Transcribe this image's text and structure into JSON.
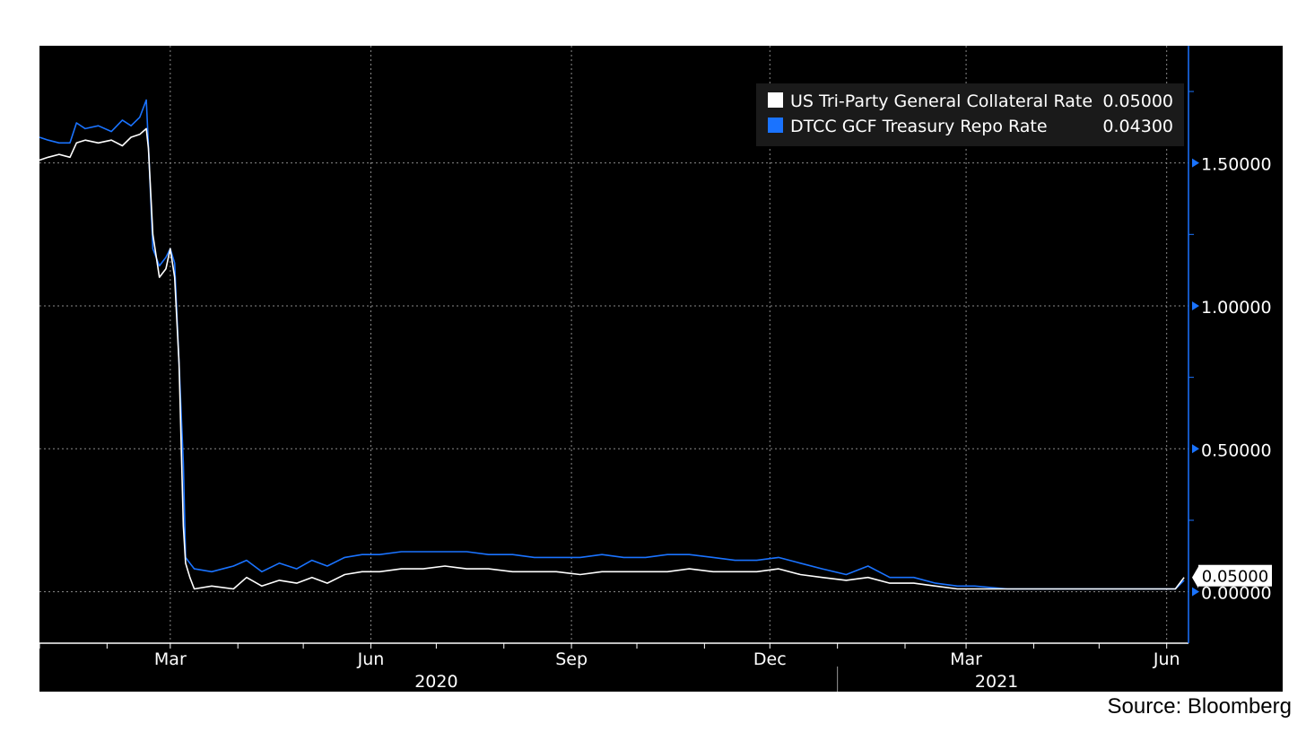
{
  "source": "Source: Bloomberg",
  "chart_data": {
    "type": "line",
    "x_start": "2020-01-01",
    "x_end": "2021-06-11",
    "ylim": [
      -0.18,
      1.91
    ],
    "y_ticks": [
      0.0,
      0.5,
      1.0,
      1.5
    ],
    "y_tick_labels": [
      "0.00000",
      "0.50000",
      "1.00000",
      "1.50000"
    ],
    "x_ticks": [
      {
        "label": "Mar",
        "date": "2020-03-01"
      },
      {
        "label": "Jun",
        "date": "2020-06-01"
      },
      {
        "label": "Sep",
        "date": "2020-09-01"
      },
      {
        "label": "Dec",
        "date": "2020-12-01"
      },
      {
        "label": "Mar",
        "date": "2021-03-01"
      },
      {
        "label": "Jun",
        "date": "2021-06-01"
      }
    ],
    "years": [
      {
        "label": "2020",
        "date": "2020-07-01"
      },
      {
        "label": "2021",
        "date": "2021-03-15"
      }
    ],
    "year_divider": "2021-01-01",
    "grid": true,
    "legend_position": "top-right",
    "last_value_label": "0.05000",
    "series": [
      {
        "name": "US Tri-Party General Collateral Rate",
        "last_value": "0.05000",
        "color": "#ffffff",
        "points": [
          [
            "2020-01-01",
            1.51
          ],
          [
            "2020-01-05",
            1.52
          ],
          [
            "2020-01-10",
            1.53
          ],
          [
            "2020-01-15",
            1.52
          ],
          [
            "2020-01-18",
            1.57
          ],
          [
            "2020-01-22",
            1.58
          ],
          [
            "2020-01-28",
            1.57
          ],
          [
            "2020-02-03",
            1.58
          ],
          [
            "2020-02-08",
            1.56
          ],
          [
            "2020-02-12",
            1.59
          ],
          [
            "2020-02-16",
            1.6
          ],
          [
            "2020-02-19",
            1.62
          ],
          [
            "2020-02-20",
            1.55
          ],
          [
            "2020-02-22",
            1.25
          ],
          [
            "2020-02-25",
            1.1
          ],
          [
            "2020-02-28",
            1.13
          ],
          [
            "2020-03-01",
            1.2
          ],
          [
            "2020-03-03",
            1.1
          ],
          [
            "2020-03-05",
            0.8
          ],
          [
            "2020-03-07",
            0.23
          ],
          [
            "2020-03-08",
            0.1
          ],
          [
            "2020-03-10",
            0.05
          ],
          [
            "2020-03-12",
            0.01
          ],
          [
            "2020-03-20",
            0.02
          ],
          [
            "2020-03-30",
            0.01
          ],
          [
            "2020-04-05",
            0.05
          ],
          [
            "2020-04-12",
            0.02
          ],
          [
            "2020-04-20",
            0.04
          ],
          [
            "2020-04-28",
            0.03
          ],
          [
            "2020-05-05",
            0.05
          ],
          [
            "2020-05-12",
            0.03
          ],
          [
            "2020-05-20",
            0.06
          ],
          [
            "2020-05-28",
            0.07
          ],
          [
            "2020-06-05",
            0.07
          ],
          [
            "2020-06-15",
            0.08
          ],
          [
            "2020-06-25",
            0.08
          ],
          [
            "2020-07-05",
            0.09
          ],
          [
            "2020-07-15",
            0.08
          ],
          [
            "2020-07-25",
            0.08
          ],
          [
            "2020-08-05",
            0.07
          ],
          [
            "2020-08-15",
            0.07
          ],
          [
            "2020-08-25",
            0.07
          ],
          [
            "2020-09-05",
            0.06
          ],
          [
            "2020-09-15",
            0.07
          ],
          [
            "2020-09-25",
            0.07
          ],
          [
            "2020-10-05",
            0.07
          ],
          [
            "2020-10-15",
            0.07
          ],
          [
            "2020-10-25",
            0.08
          ],
          [
            "2020-11-05",
            0.07
          ],
          [
            "2020-11-15",
            0.07
          ],
          [
            "2020-11-25",
            0.07
          ],
          [
            "2020-12-05",
            0.08
          ],
          [
            "2020-12-15",
            0.06
          ],
          [
            "2020-12-25",
            0.05
          ],
          [
            "2021-01-05",
            0.04
          ],
          [
            "2021-01-15",
            0.05
          ],
          [
            "2021-01-25",
            0.03
          ],
          [
            "2021-02-05",
            0.03
          ],
          [
            "2021-02-15",
            0.02
          ],
          [
            "2021-02-25",
            0.01
          ],
          [
            "2021-03-05",
            0.01
          ],
          [
            "2021-03-20",
            0.01
          ],
          [
            "2021-04-05",
            0.01
          ],
          [
            "2021-04-20",
            0.01
          ],
          [
            "2021-05-05",
            0.01
          ],
          [
            "2021-05-20",
            0.01
          ],
          [
            "2021-06-05",
            0.01
          ],
          [
            "2021-06-09",
            0.05
          ]
        ]
      },
      {
        "name": "DTCC GCF Treasury Repo Rate",
        "last_value": "0.04300",
        "color": "#1a73ff",
        "points": [
          [
            "2020-01-01",
            1.59
          ],
          [
            "2020-01-05",
            1.58
          ],
          [
            "2020-01-10",
            1.57
          ],
          [
            "2020-01-15",
            1.57
          ],
          [
            "2020-01-18",
            1.64
          ],
          [
            "2020-01-22",
            1.62
          ],
          [
            "2020-01-28",
            1.63
          ],
          [
            "2020-02-03",
            1.61
          ],
          [
            "2020-02-08",
            1.65
          ],
          [
            "2020-02-12",
            1.63
          ],
          [
            "2020-02-16",
            1.66
          ],
          [
            "2020-02-19",
            1.72
          ],
          [
            "2020-02-20",
            1.56
          ],
          [
            "2020-02-22",
            1.2
          ],
          [
            "2020-02-25",
            1.14
          ],
          [
            "2020-02-28",
            1.17
          ],
          [
            "2020-03-01",
            1.2
          ],
          [
            "2020-03-03",
            1.15
          ],
          [
            "2020-03-05",
            0.8
          ],
          [
            "2020-03-07",
            0.45
          ],
          [
            "2020-03-08",
            0.12
          ],
          [
            "2020-03-10",
            0.1
          ],
          [
            "2020-03-12",
            0.08
          ],
          [
            "2020-03-20",
            0.07
          ],
          [
            "2020-03-30",
            0.09
          ],
          [
            "2020-04-05",
            0.11
          ],
          [
            "2020-04-12",
            0.07
          ],
          [
            "2020-04-20",
            0.1
          ],
          [
            "2020-04-28",
            0.08
          ],
          [
            "2020-05-05",
            0.11
          ],
          [
            "2020-05-12",
            0.09
          ],
          [
            "2020-05-20",
            0.12
          ],
          [
            "2020-05-28",
            0.13
          ],
          [
            "2020-06-05",
            0.13
          ],
          [
            "2020-06-15",
            0.14
          ],
          [
            "2020-06-25",
            0.14
          ],
          [
            "2020-07-05",
            0.14
          ],
          [
            "2020-07-15",
            0.14
          ],
          [
            "2020-07-25",
            0.13
          ],
          [
            "2020-08-05",
            0.13
          ],
          [
            "2020-08-15",
            0.12
          ],
          [
            "2020-08-25",
            0.12
          ],
          [
            "2020-09-05",
            0.12
          ],
          [
            "2020-09-15",
            0.13
          ],
          [
            "2020-09-25",
            0.12
          ],
          [
            "2020-10-05",
            0.12
          ],
          [
            "2020-10-15",
            0.13
          ],
          [
            "2020-10-25",
            0.13
          ],
          [
            "2020-11-05",
            0.12
          ],
          [
            "2020-11-15",
            0.11
          ],
          [
            "2020-11-25",
            0.11
          ],
          [
            "2020-12-05",
            0.12
          ],
          [
            "2020-12-15",
            0.1
          ],
          [
            "2020-12-25",
            0.08
          ],
          [
            "2021-01-05",
            0.06
          ],
          [
            "2021-01-15",
            0.09
          ],
          [
            "2021-01-25",
            0.05
          ],
          [
            "2021-02-05",
            0.05
          ],
          [
            "2021-02-15",
            0.03
          ],
          [
            "2021-02-25",
            0.02
          ],
          [
            "2021-03-05",
            0.02
          ],
          [
            "2021-03-20",
            0.01
          ],
          [
            "2021-04-05",
            0.01
          ],
          [
            "2021-04-20",
            0.01
          ],
          [
            "2021-05-05",
            0.01
          ],
          [
            "2021-05-20",
            0.01
          ],
          [
            "2021-06-05",
            0.01
          ],
          [
            "2021-06-09",
            0.04
          ]
        ]
      }
    ]
  }
}
